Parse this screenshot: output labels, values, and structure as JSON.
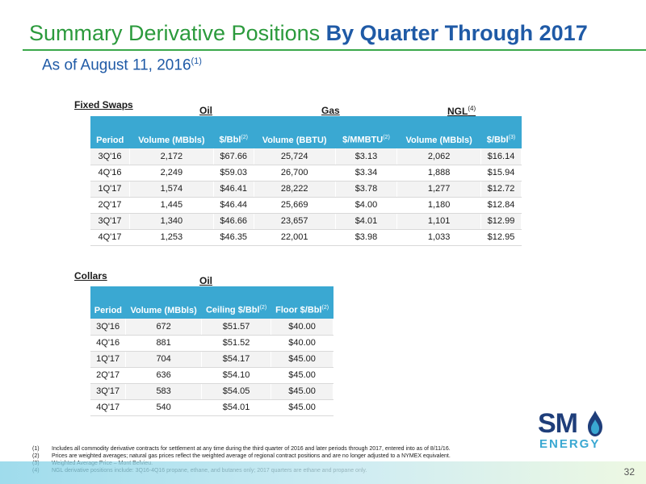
{
  "header": {
    "title_regular": "Summary Derivative Positions ",
    "title_bold": "By Quarter Through 2017",
    "subtitle": "As of August 11, 2016",
    "subtitle_sup": "(1)"
  },
  "fixed_swaps": {
    "section_label": "Fixed Swaps",
    "groups": {
      "oil": "Oil",
      "gas": "Gas",
      "ngl": "NGL",
      "ngl_sup": "(4)"
    },
    "columns": [
      {
        "label": "Period",
        "sup": ""
      },
      {
        "label": "Volume (MBbls)",
        "sup": ""
      },
      {
        "label": "$/Bbl",
        "sup": "(2)"
      },
      {
        "label": "Volume (BBTU)",
        "sup": ""
      },
      {
        "label": "$/MMBTU",
        "sup": "(2)"
      },
      {
        "label": "Volume (MBbls)",
        "sup": ""
      },
      {
        "label": "$/Bbl",
        "sup": "(3)"
      }
    ],
    "rows": [
      [
        "3Q'16",
        "2,172",
        "$67.66",
        "25,724",
        "$3.13",
        "2,062",
        "$16.14"
      ],
      [
        "4Q'16",
        "2,249",
        "$59.03",
        "26,700",
        "$3.34",
        "1,888",
        "$15.94"
      ],
      [
        "1Q'17",
        "1,574",
        "$46.41",
        "28,222",
        "$3.78",
        "1,277",
        "$12.72"
      ],
      [
        "2Q'17",
        "1,445",
        "$46.44",
        "25,669",
        "$4.00",
        "1,180",
        "$12.84"
      ],
      [
        "3Q'17",
        "1,340",
        "$46.66",
        "23,657",
        "$4.01",
        "1,101",
        "$12.99"
      ],
      [
        "4Q'17",
        "1,253",
        "$46.35",
        "22,001",
        "$3.98",
        "1,033",
        "$12.95"
      ]
    ]
  },
  "collars": {
    "section_label": "Collars",
    "group": "Oil",
    "columns": [
      {
        "label": "Period",
        "sup": ""
      },
      {
        "label": "Volume (MBbls)",
        "sup": ""
      },
      {
        "label": "Ceiling $/Bbl",
        "sup": "(2)"
      },
      {
        "label": "Floor $/Bbl",
        "sup": "(2)"
      }
    ],
    "rows": [
      [
        "3Q'16",
        "672",
        "$51.57",
        "$40.00"
      ],
      [
        "4Q'16",
        "881",
        "$51.52",
        "$40.00"
      ],
      [
        "1Q'17",
        "704",
        "$54.17",
        "$45.00"
      ],
      [
        "2Q'17",
        "636",
        "$54.10",
        "$45.00"
      ],
      [
        "3Q'17",
        "583",
        "$54.05",
        "$45.00"
      ],
      [
        "4Q'17",
        "540",
        "$54.01",
        "$45.00"
      ]
    ]
  },
  "logo": {
    "text_top": "SM",
    "text_bottom": "ENERGY",
    "icon": "flame-icon",
    "color_dark": "#1f3e7a",
    "color_light": "#3aa8d2"
  },
  "footnotes": [
    {
      "num": "(1)",
      "text": "Includes all commodity derivative contracts for settlement at any time during the third quarter of 2016 and later periods through 2017, entered into as of 8/11/16."
    },
    {
      "num": "(2)",
      "text": "Prices are weighted averages; natural gas prices reflect the weighted average of regional contract positions and are no longer adjusted to a NYMEX equivalent."
    },
    {
      "num": "(3)",
      "text": "Weighted Average Price – Mont Belvieu."
    },
    {
      "num": "(4)",
      "text": "NGL derivative positions include: 3Q16-4Q16 propane, ethane, and butanes only; 2017 quarters are ethane and propane only."
    }
  ],
  "page_number": "32",
  "colors": {
    "title_green": "#2b9a3c",
    "title_blue": "#1f5aa6",
    "table_header": "#3aa8d2"
  }
}
